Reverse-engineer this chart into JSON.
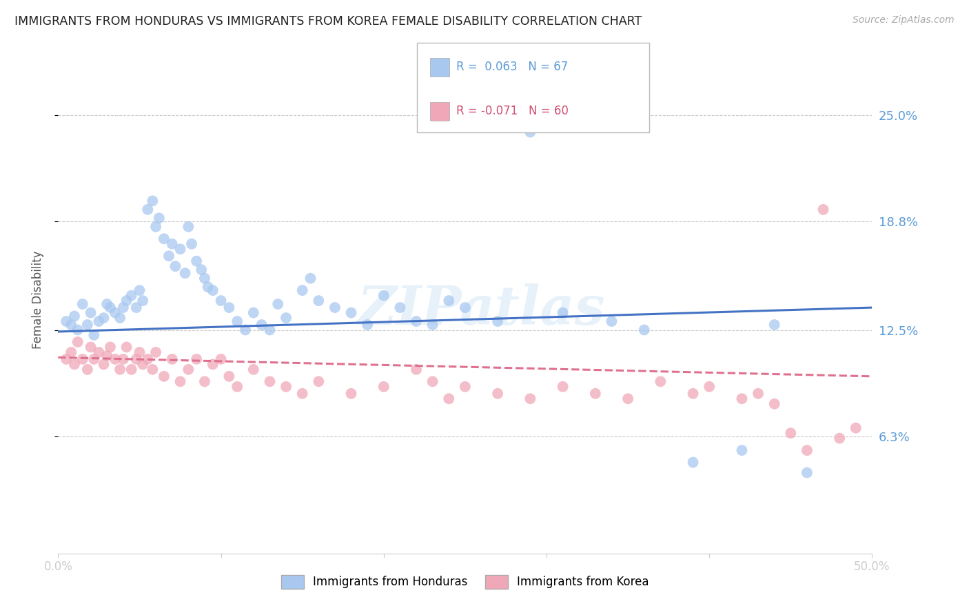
{
  "title": "IMMIGRANTS FROM HONDURAS VS IMMIGRANTS FROM KOREA FEMALE DISABILITY CORRELATION CHART",
  "source": "Source: ZipAtlas.com",
  "ylabel": "Female Disability",
  "ytick_labels": [
    "25.0%",
    "18.8%",
    "12.5%",
    "6.3%"
  ],
  "ytick_values": [
    0.25,
    0.188,
    0.125,
    0.063
  ],
  "xlim": [
    0.0,
    0.5
  ],
  "ylim": [
    -0.005,
    0.29
  ],
  "legend_r1": "R =  0.063",
  "legend_n1": "N = 67",
  "legend_r2": "R = -0.071",
  "legend_n2": "N = 60",
  "color_honduras": "#a8c8f0",
  "color_korea": "#f0a8b8",
  "color_line_honduras": "#4472c4",
  "color_line_korea": "#e07090",
  "color_yticks": "#5b9bd5",
  "background": "#ffffff",
  "watermark": "ZIPatlas",
  "honduras_x": [
    0.005,
    0.008,
    0.01,
    0.012,
    0.015,
    0.018,
    0.02,
    0.022,
    0.025,
    0.028,
    0.03,
    0.032,
    0.035,
    0.038,
    0.04,
    0.042,
    0.045,
    0.048,
    0.05,
    0.052,
    0.055,
    0.058,
    0.06,
    0.062,
    0.065,
    0.068,
    0.07,
    0.072,
    0.075,
    0.078,
    0.08,
    0.082,
    0.085,
    0.088,
    0.09,
    0.092,
    0.095,
    0.1,
    0.105,
    0.11,
    0.115,
    0.12,
    0.125,
    0.13,
    0.135,
    0.14,
    0.15,
    0.155,
    0.16,
    0.17,
    0.18,
    0.19,
    0.2,
    0.21,
    0.22,
    0.23,
    0.24,
    0.25,
    0.27,
    0.29,
    0.31,
    0.34,
    0.36,
    0.39,
    0.42,
    0.44,
    0.46
  ],
  "honduras_y": [
    0.13,
    0.128,
    0.133,
    0.125,
    0.14,
    0.128,
    0.135,
    0.122,
    0.13,
    0.132,
    0.14,
    0.138,
    0.135,
    0.132,
    0.138,
    0.142,
    0.145,
    0.138,
    0.148,
    0.142,
    0.195,
    0.2,
    0.185,
    0.19,
    0.178,
    0.168,
    0.175,
    0.162,
    0.172,
    0.158,
    0.185,
    0.175,
    0.165,
    0.16,
    0.155,
    0.15,
    0.148,
    0.142,
    0.138,
    0.13,
    0.125,
    0.135,
    0.128,
    0.125,
    0.14,
    0.132,
    0.148,
    0.155,
    0.142,
    0.138,
    0.135,
    0.128,
    0.145,
    0.138,
    0.13,
    0.128,
    0.142,
    0.138,
    0.13,
    0.24,
    0.135,
    0.13,
    0.125,
    0.048,
    0.055,
    0.128,
    0.042
  ],
  "korea_x": [
    0.005,
    0.008,
    0.01,
    0.012,
    0.015,
    0.018,
    0.02,
    0.022,
    0.025,
    0.028,
    0.03,
    0.032,
    0.035,
    0.038,
    0.04,
    0.042,
    0.045,
    0.048,
    0.05,
    0.052,
    0.055,
    0.058,
    0.06,
    0.065,
    0.07,
    0.075,
    0.08,
    0.085,
    0.09,
    0.095,
    0.1,
    0.105,
    0.11,
    0.12,
    0.13,
    0.14,
    0.15,
    0.16,
    0.18,
    0.2,
    0.22,
    0.23,
    0.24,
    0.25,
    0.27,
    0.29,
    0.31,
    0.33,
    0.35,
    0.37,
    0.39,
    0.4,
    0.42,
    0.43,
    0.44,
    0.45,
    0.46,
    0.47,
    0.48,
    0.49
  ],
  "korea_y": [
    0.108,
    0.112,
    0.105,
    0.118,
    0.108,
    0.102,
    0.115,
    0.108,
    0.112,
    0.105,
    0.11,
    0.115,
    0.108,
    0.102,
    0.108,
    0.115,
    0.102,
    0.108,
    0.112,
    0.105,
    0.108,
    0.102,
    0.112,
    0.098,
    0.108,
    0.095,
    0.102,
    0.108,
    0.095,
    0.105,
    0.108,
    0.098,
    0.092,
    0.102,
    0.095,
    0.092,
    0.088,
    0.095,
    0.088,
    0.092,
    0.102,
    0.095,
    0.085,
    0.092,
    0.088,
    0.085,
    0.092,
    0.088,
    0.085,
    0.095,
    0.088,
    0.092,
    0.085,
    0.088,
    0.082,
    0.065,
    0.055,
    0.195,
    0.062,
    0.068
  ],
  "line_honduras_x0": 0.0,
  "line_honduras_x1": 0.5,
  "line_honduras_y0": 0.124,
  "line_honduras_y1": 0.138,
  "line_korea_x0": 0.0,
  "line_korea_x1": 0.5,
  "line_korea_y0": 0.109,
  "line_korea_y1": 0.098
}
